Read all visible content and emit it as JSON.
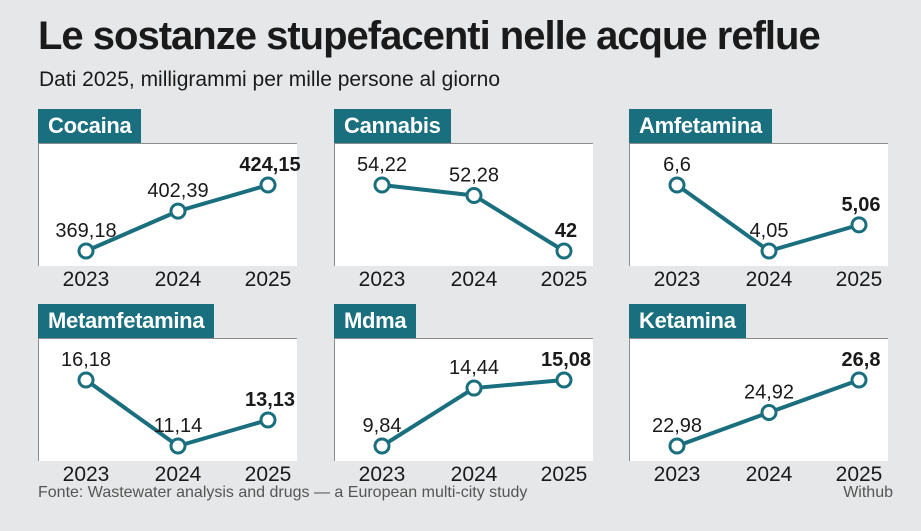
{
  "title": "Le sostanze stupefacenti nelle acque reflue",
  "subtitle": "Dati 2025, milligrammi per mille persone al giorno",
  "source": "Fonte: Wastewater analysis and drugs — a European multi-city study",
  "credit": "Withub",
  "colors": {
    "accent": "#1a6f7e",
    "background": "#e6e7e8",
    "panel": "#ffffff"
  },
  "chart_data": [
    {
      "type": "line",
      "title": "Cocaina",
      "x": [
        "2023",
        "2024",
        "2025"
      ],
      "values": [
        369.18,
        402.39,
        424.15
      ],
      "labels": [
        "369,18",
        "402,39",
        "424,15"
      ]
    },
    {
      "type": "line",
      "title": "Cannabis",
      "x": [
        "2023",
        "2024",
        "2025"
      ],
      "values": [
        54.22,
        52.28,
        42
      ],
      "labels": [
        "54,22",
        "52,28",
        "42"
      ]
    },
    {
      "type": "line",
      "title": "Amfetamina",
      "x": [
        "2023",
        "2024",
        "2025"
      ],
      "values": [
        6.6,
        4.05,
        5.06
      ],
      "labels": [
        "6,6",
        "4,05",
        "5,06"
      ]
    },
    {
      "type": "line",
      "title": "Metamfetamina",
      "x": [
        "2023",
        "2024",
        "2025"
      ],
      "values": [
        16.18,
        11.14,
        13.13
      ],
      "labels": [
        "16,18",
        "11,14",
        "13,13"
      ]
    },
    {
      "type": "line",
      "title": "Mdma",
      "x": [
        "2023",
        "2024",
        "2025"
      ],
      "values": [
        9.84,
        14.44,
        15.08
      ],
      "labels": [
        "9,84",
        "14,44",
        "15,08"
      ]
    },
    {
      "type": "line",
      "title": "Ketamina",
      "x": [
        "2023",
        "2024",
        "2025"
      ],
      "values": [
        22.98,
        24.92,
        26.8
      ],
      "labels": [
        "22,98",
        "24,92",
        "26,8"
      ]
    }
  ]
}
